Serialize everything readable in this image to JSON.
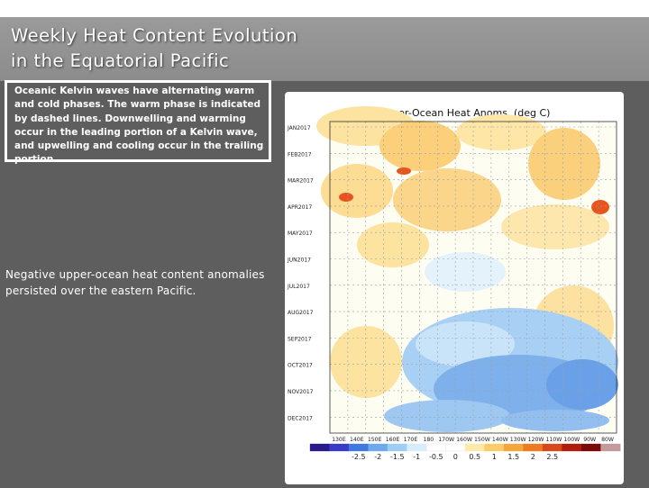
{
  "slide": {
    "title_line1": "Weekly Heat Content Evolution",
    "title_line2": "in the Equatorial Pacific",
    "note": "Oceanic Kelvin waves have alternating warm and cold phases. The warm phase is indicated by dashed lines. Downwelling and warming occur in the leading portion of a Kelvin wave, and upwelling and cooling occur in the trailing portion.",
    "anomaly_note": "Negative upper-ocean heat content anomalies persisted over the eastern Pacific."
  },
  "plot": {
    "title": "EQ. Upper-Ocean Heat Anoms. (deg C)",
    "y_labels": [
      "JAN2017",
      "FEB2017",
      "MAR2017",
      "APR2017",
      "MAY2017",
      "JUN2017",
      "JUL2017",
      "AUG2017",
      "SEP2017",
      "OCT2017",
      "NOV2017",
      "DEC2017"
    ],
    "x_labels": [
      "130E",
      "140E",
      "150E",
      "160E",
      "170E",
      "180",
      "170W",
      "160W",
      "150W",
      "140W",
      "130W",
      "120W",
      "110W",
      "100W",
      "90W",
      "80W"
    ],
    "colorbar_labels": [
      "-2.5",
      "-2",
      "-1.5",
      "-1",
      "-0.5",
      "0",
      "0.5",
      "1",
      "1.5",
      "2",
      "2.5"
    ],
    "colorbar_colors": [
      "#2a1a8c",
      "#3a3ac8",
      "#3f78e0",
      "#6fa8ec",
      "#9fcdf3",
      "#d7eefa",
      "#ffffff",
      "#ffffff",
      "#fde9a8",
      "#fccb6a",
      "#f6a53a",
      "#ee7a22",
      "#d8481a",
      "#b01d10",
      "#7a0a0a",
      "#c29a9a"
    ]
  }
}
